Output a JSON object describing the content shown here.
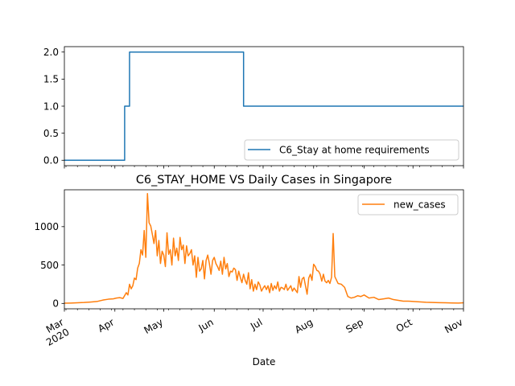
{
  "chart_data": [
    {
      "type": "line",
      "title": "",
      "xlabel": "",
      "ylabel": "",
      "xlim": [
        "2020-03-01",
        "2020-11-01"
      ],
      "ylim": [
        -0.1,
        2.1
      ],
      "yticks": [
        0.0,
        0.5,
        1.0,
        1.5,
        2.0
      ],
      "ytick_labels": [
        "0.0",
        "0.5",
        "1.0",
        "1.5",
        "2.0"
      ],
      "legend_position": "bottom-right",
      "grid": false,
      "series": [
        {
          "name": "C6_Stay at home requirements",
          "color": "#1f77b4",
          "step": true,
          "x": [
            "2020-03-01",
            "2020-04-07",
            "2020-04-10",
            "2020-06-19",
            "2020-11-01"
          ],
          "values": [
            0,
            1,
            2,
            1,
            1
          ]
        }
      ]
    },
    {
      "type": "line",
      "title": "C6_STAY_HOME VS Daily Cases in Singapore",
      "xlabel": "Date",
      "ylabel": "",
      "xlim": [
        "2020-03-01",
        "2020-11-01"
      ],
      "ylim": [
        -70,
        1480
      ],
      "yticks": [
        0,
        500,
        1000
      ],
      "ytick_labels": [
        "0",
        "500",
        "1000"
      ],
      "xtick_dates": [
        "2020-03-01",
        "2020-04-01",
        "2020-05-01",
        "2020-06-01",
        "2020-07-01",
        "2020-08-01",
        "2020-09-01",
        "2020-10-01",
        "2020-11-01"
      ],
      "xtick_labels": [
        "Mar\n2020",
        "Apr",
        "May",
        "Jun",
        "Jul",
        "Aug",
        "Sep",
        "Oct",
        "Nov"
      ],
      "legend_position": "top-right",
      "grid": false,
      "series": [
        {
          "name": "new_cases",
          "color": "#ff7f0e",
          "x": [
            "2020-03-01",
            "2020-03-05",
            "2020-03-09",
            "2020-03-13",
            "2020-03-17",
            "2020-03-21",
            "2020-03-25",
            "2020-03-28",
            "2020-03-31",
            "2020-04-02",
            "2020-04-04",
            "2020-04-06",
            "2020-04-08",
            "2020-04-09",
            "2020-04-10",
            "2020-04-11",
            "2020-04-12",
            "2020-04-13",
            "2020-04-14",
            "2020-04-15",
            "2020-04-16",
            "2020-04-17",
            "2020-04-18",
            "2020-04-19",
            "2020-04-20",
            "2020-04-21",
            "2020-04-22",
            "2020-04-23",
            "2020-04-24",
            "2020-04-25",
            "2020-04-26",
            "2020-04-27",
            "2020-04-28",
            "2020-04-29",
            "2020-04-30",
            "2020-05-01",
            "2020-05-02",
            "2020-05-03",
            "2020-05-04",
            "2020-05-05",
            "2020-05-06",
            "2020-05-07",
            "2020-05-08",
            "2020-05-09",
            "2020-05-10",
            "2020-05-11",
            "2020-05-12",
            "2020-05-13",
            "2020-05-14",
            "2020-05-15",
            "2020-05-16",
            "2020-05-17",
            "2020-05-18",
            "2020-05-19",
            "2020-05-20",
            "2020-05-21",
            "2020-05-22",
            "2020-05-23",
            "2020-05-24",
            "2020-05-25",
            "2020-05-26",
            "2020-05-27",
            "2020-05-28",
            "2020-05-29",
            "2020-05-30",
            "2020-05-31",
            "2020-06-01",
            "2020-06-02",
            "2020-06-03",
            "2020-06-04",
            "2020-06-05",
            "2020-06-06",
            "2020-06-07",
            "2020-06-08",
            "2020-06-09",
            "2020-06-10",
            "2020-06-11",
            "2020-06-12",
            "2020-06-13",
            "2020-06-14",
            "2020-06-15",
            "2020-06-16",
            "2020-06-17",
            "2020-06-18",
            "2020-06-19",
            "2020-06-20",
            "2020-06-21",
            "2020-06-22",
            "2020-06-23",
            "2020-06-24",
            "2020-06-25",
            "2020-06-26",
            "2020-06-27",
            "2020-06-28",
            "2020-06-29",
            "2020-06-30",
            "2020-07-01",
            "2020-07-02",
            "2020-07-03",
            "2020-07-04",
            "2020-07-05",
            "2020-07-06",
            "2020-07-07",
            "2020-07-08",
            "2020-07-09",
            "2020-07-10",
            "2020-07-11",
            "2020-07-12",
            "2020-07-13",
            "2020-07-14",
            "2020-07-15",
            "2020-07-16",
            "2020-07-17",
            "2020-07-18",
            "2020-07-19",
            "2020-07-20",
            "2020-07-21",
            "2020-07-22",
            "2020-07-23",
            "2020-07-24",
            "2020-07-25",
            "2020-07-26",
            "2020-07-27",
            "2020-07-28",
            "2020-07-29",
            "2020-07-30",
            "2020-07-31",
            "2020-08-01",
            "2020-08-02",
            "2020-08-03",
            "2020-08-04",
            "2020-08-05",
            "2020-08-06",
            "2020-08-07",
            "2020-08-08",
            "2020-08-09",
            "2020-08-10",
            "2020-08-11",
            "2020-08-12",
            "2020-08-13",
            "2020-08-14",
            "2020-08-16",
            "2020-08-18",
            "2020-08-20",
            "2020-08-22",
            "2020-08-24",
            "2020-08-26",
            "2020-08-28",
            "2020-08-30",
            "2020-09-01",
            "2020-09-04",
            "2020-09-07",
            "2020-09-10",
            "2020-09-13",
            "2020-09-16",
            "2020-09-19",
            "2020-09-22",
            "2020-09-25",
            "2020-09-28",
            "2020-10-01",
            "2020-10-05",
            "2020-10-09",
            "2020-10-13",
            "2020-10-17",
            "2020-10-21",
            "2020-10-25",
            "2020-10-29",
            "2020-11-01"
          ],
          "values": [
            3,
            5,
            8,
            12,
            18,
            25,
            45,
            55,
            60,
            70,
            75,
            65,
            140,
            110,
            250,
            190,
            230,
            330,
            310,
            460,
            520,
            700,
            630,
            950,
            600,
            1430,
            1050,
            1010,
            900,
            780,
            950,
            620,
            820,
            520,
            680,
            630,
            480,
            920,
            640,
            700,
            500,
            850,
            620,
            720,
            560,
            860,
            700,
            760,
            520,
            750,
            620,
            650,
            700,
            500,
            620,
            340,
            600,
            420,
            450,
            560,
            320,
            560,
            630,
            520,
            380,
            560,
            600,
            520,
            480,
            430,
            550,
            380,
            600,
            450,
            520,
            350,
            420,
            410,
            460,
            440,
            300,
            420,
            340,
            270,
            380,
            300,
            250,
            400,
            190,
            310,
            160,
            250,
            180,
            280,
            240,
            160,
            200,
            230,
            180,
            230,
            140,
            260,
            170,
            230,
            190,
            280,
            160,
            210,
            200,
            180,
            250,
            170,
            200,
            230,
            160,
            200,
            170,
            140,
            350,
            210,
            320,
            340,
            230,
            120,
            330,
            380,
            300,
            510,
            480,
            430,
            420,
            380,
            290,
            380,
            290,
            270,
            300,
            260,
            340,
            910,
            350,
            260,
            250,
            210,
            90,
            70,
            80,
            100,
            90,
            110,
            70,
            80,
            50,
            60,
            70,
            50,
            40,
            30,
            30,
            25,
            20,
            15,
            12,
            10,
            8,
            6,
            5,
            8
          ]
        }
      ]
    }
  ]
}
